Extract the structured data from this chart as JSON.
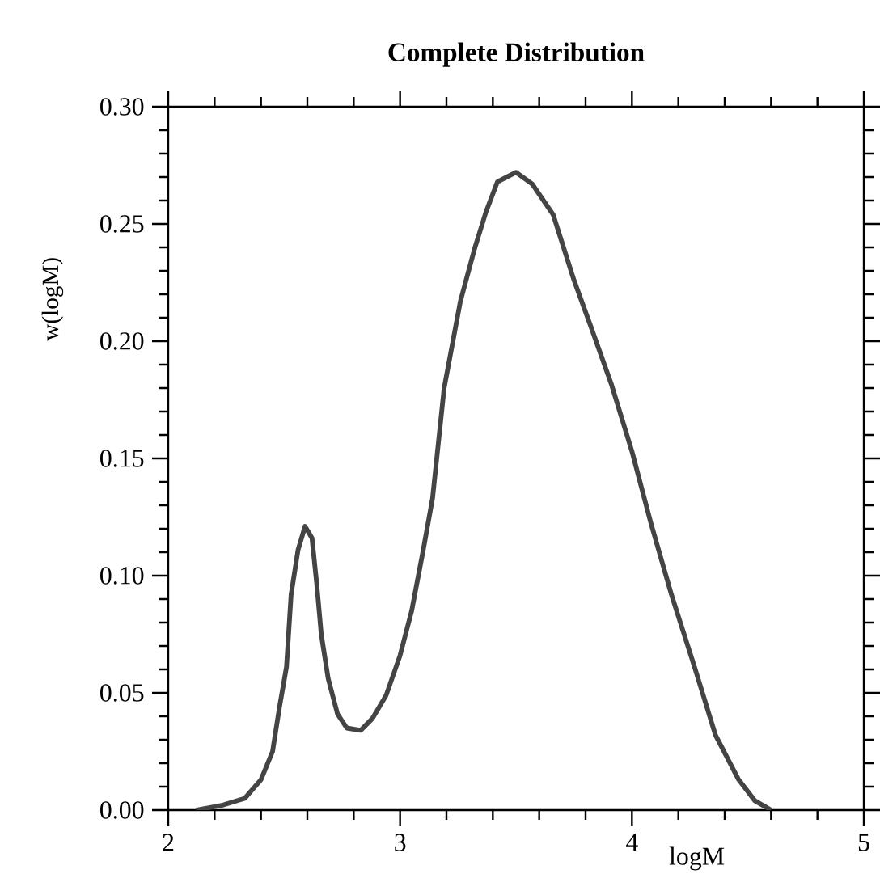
{
  "chart_data": {
    "type": "line",
    "title": "Complete Distribution",
    "xlabel": "logM",
    "ylabel": "w(logM)",
    "color": "#444444",
    "x": [
      2.12,
      2.23,
      2.33,
      2.4,
      2.45,
      2.48,
      2.51,
      2.53,
      2.56,
      2.59,
      2.62,
      2.64,
      2.66,
      2.69,
      2.73,
      2.77,
      2.83,
      2.88,
      2.94,
      3.0,
      3.05,
      3.1,
      3.14,
      3.19,
      3.26,
      3.32,
      3.37,
      3.42,
      3.5,
      3.57,
      3.66,
      3.75,
      3.82,
      3.91,
      4.0,
      4.08,
      4.17,
      4.27,
      4.36,
      4.46,
      4.53,
      4.6
    ],
    "values": [
      0.0,
      0.002,
      0.005,
      0.013,
      0.025,
      0.044,
      0.061,
      0.092,
      0.111,
      0.121,
      0.116,
      0.097,
      0.075,
      0.056,
      0.041,
      0.035,
      0.034,
      0.039,
      0.049,
      0.066,
      0.085,
      0.111,
      0.133,
      0.18,
      0.217,
      0.239,
      0.255,
      0.268,
      0.272,
      0.267,
      0.254,
      0.226,
      0.207,
      0.182,
      0.153,
      0.123,
      0.092,
      0.061,
      0.032,
      0.013,
      0.004,
      0.0
    ],
    "xlim": [
      2,
      5
    ],
    "ylim": [
      0,
      0.3
    ],
    "xticks": [
      2,
      3,
      4,
      5
    ],
    "yticks": [
      {
        "value": 0,
        "label": "0.00"
      },
      {
        "value": 0.05,
        "label": "0.05"
      },
      {
        "value": 0.1,
        "label": "0.10"
      },
      {
        "value": 0.15,
        "label": "0.15"
      },
      {
        "value": 0.2,
        "label": "0.20"
      },
      {
        "value": 0.25,
        "label": "0.25"
      },
      {
        "value": 0.3,
        "label": "0.30"
      }
    ]
  }
}
